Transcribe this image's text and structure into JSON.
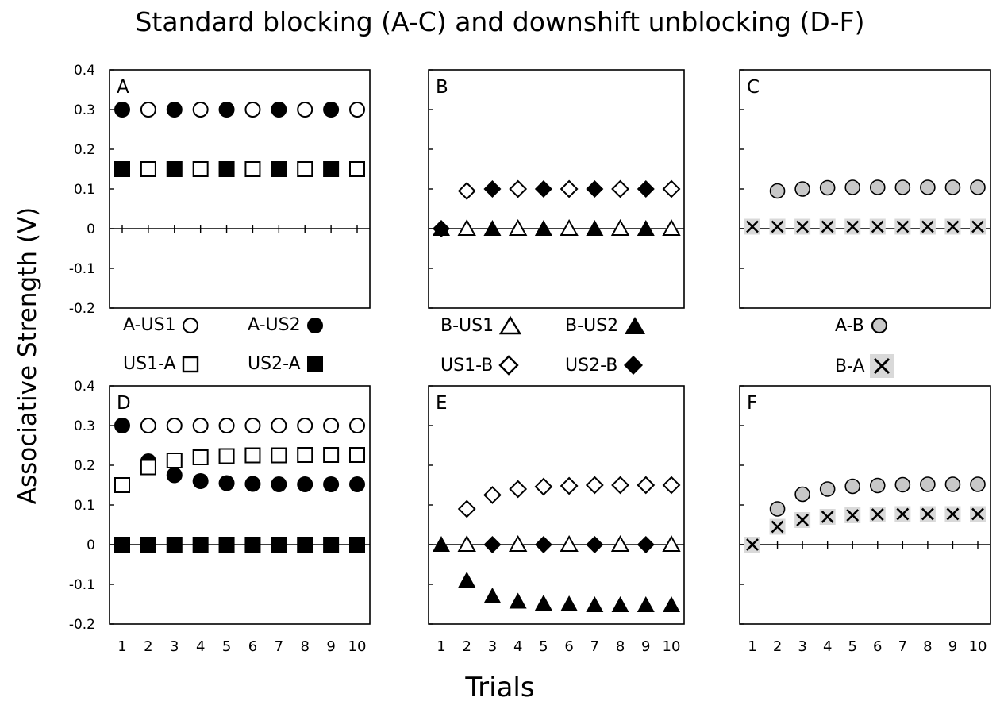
{
  "chart_data": [
    {
      "panel": "A",
      "type": "scatter",
      "x": [
        1,
        2,
        3,
        4,
        5,
        6,
        7,
        8,
        9,
        10
      ],
      "ylim": [
        -0.2,
        0.4
      ],
      "series": [
        {
          "name": "A-US1",
          "marker": "circle-open",
          "x": [
            2,
            4,
            6,
            8,
            10
          ],
          "values": [
            0.3,
            0.3,
            0.3,
            0.3,
            0.3
          ]
        },
        {
          "name": "A-US2",
          "marker": "circle-filled",
          "x": [
            1,
            3,
            5,
            7,
            9
          ],
          "values": [
            0.3,
            0.3,
            0.3,
            0.3,
            0.3
          ]
        },
        {
          "name": "US1-A",
          "marker": "square-open",
          "x": [
            2,
            4,
            6,
            8,
            10
          ],
          "values": [
            0.15,
            0.15,
            0.15,
            0.15,
            0.15
          ]
        },
        {
          "name": "US2-A",
          "marker": "square-filled",
          "x": [
            1,
            3,
            5,
            7,
            9
          ],
          "values": [
            0.15,
            0.15,
            0.15,
            0.15,
            0.15
          ]
        }
      ]
    },
    {
      "panel": "B",
      "type": "scatter",
      "x": [
        1,
        2,
        3,
        4,
        5,
        6,
        7,
        8,
        9,
        10
      ],
      "ylim": [
        -0.2,
        0.4
      ],
      "series": [
        {
          "name": "B-US1",
          "marker": "triangle-open",
          "x": [
            2,
            4,
            6,
            8,
            10
          ],
          "values": [
            0,
            0,
            0,
            0,
            0
          ]
        },
        {
          "name": "B-US2",
          "marker": "triangle-filled",
          "x": [
            1,
            3,
            5,
            7,
            9
          ],
          "values": [
            0,
            0,
            0,
            0,
            0
          ]
        },
        {
          "name": "US1-B",
          "marker": "diamond-open",
          "x": [
            2,
            4,
            6,
            8,
            10
          ],
          "values": [
            0.095,
            0.1,
            0.1,
            0.1,
            0.1
          ]
        },
        {
          "name": "US2-B",
          "marker": "diamond-filled",
          "x": [
            1,
            3,
            5,
            7,
            9
          ],
          "values": [
            0,
            0.1,
            0.1,
            0.1,
            0.1
          ]
        }
      ]
    },
    {
      "panel": "C",
      "type": "scatter",
      "x": [
        1,
        2,
        3,
        4,
        5,
        6,
        7,
        8,
        9,
        10
      ],
      "ylim": [
        -0.2,
        0.4
      ],
      "series": [
        {
          "name": "A-B",
          "marker": "circle-gray",
          "x": [
            2,
            3,
            4,
            5,
            6,
            7,
            8,
            9,
            10
          ],
          "values": [
            0.095,
            0.1,
            0.103,
            0.104,
            0.104,
            0.104,
            0.104,
            0.104,
            0.104
          ]
        },
        {
          "name": "B-A",
          "marker": "x-gray",
          "x": [
            1,
            2,
            3,
            4,
            5,
            6,
            7,
            8,
            9,
            10
          ],
          "values": [
            0.005,
            0.005,
            0.005,
            0.005,
            0.005,
            0.005,
            0.005,
            0.005,
            0.005,
            0.005
          ]
        }
      ]
    },
    {
      "panel": "D",
      "type": "scatter",
      "x": [
        1,
        2,
        3,
        4,
        5,
        6,
        7,
        8,
        9,
        10
      ],
      "ylim": [
        -0.2,
        0.4
      ],
      "series": [
        {
          "name": "A-US1",
          "marker": "circle-open",
          "x": [
            2,
            3,
            4,
            5,
            6,
            7,
            8,
            9,
            10
          ],
          "values": [
            0.3,
            0.3,
            0.3,
            0.3,
            0.3,
            0.3,
            0.3,
            0.3,
            0.3
          ]
        },
        {
          "name": "A-US2",
          "marker": "circle-filled",
          "x": [
            1,
            2,
            3,
            4,
            5,
            6,
            7,
            8,
            9,
            10
          ],
          "values": [
            0.3,
            0.21,
            0.175,
            0.16,
            0.155,
            0.153,
            0.152,
            0.152,
            0.152,
            0.152
          ]
        },
        {
          "name": "US1-A",
          "marker": "square-open",
          "x": [
            1,
            2,
            3,
            4,
            5,
            6,
            7,
            8,
            9,
            10
          ],
          "values": [
            0.15,
            0.195,
            0.212,
            0.22,
            0.223,
            0.225,
            0.225,
            0.226,
            0.226,
            0.226
          ]
        },
        {
          "name": "US2-A",
          "marker": "square-filled",
          "x": [
            1,
            2,
            3,
            4,
            5,
            6,
            7,
            8,
            9,
            10
          ],
          "values": [
            0,
            0,
            0,
            0,
            0,
            0,
            0,
            0,
            0,
            0
          ]
        }
      ]
    },
    {
      "panel": "E",
      "type": "scatter",
      "x": [
        1,
        2,
        3,
        4,
        5,
        6,
        7,
        8,
        9,
        10
      ],
      "ylim": [
        -0.2,
        0.4
      ],
      "series": [
        {
          "name": "B-US1",
          "marker": "triangle-open",
          "x": [
            2,
            4,
            6,
            8,
            10
          ],
          "values": [
            0,
            0,
            0,
            0,
            0
          ]
        },
        {
          "name": "B-US2",
          "marker": "triangle-filled",
          "x": [
            1,
            2,
            3,
            4,
            5,
            6,
            7,
            8,
            9,
            10
          ],
          "values": [
            0,
            -0.09,
            -0.13,
            -0.143,
            -0.148,
            -0.15,
            -0.152,
            -0.152,
            -0.152,
            -0.152
          ]
        },
        {
          "name": "US1-B",
          "marker": "diamond-open",
          "x": [
            2,
            3,
            4,
            5,
            6,
            7,
            8,
            9,
            10
          ],
          "values": [
            0.09,
            0.125,
            0.14,
            0.146,
            0.148,
            0.15,
            0.15,
            0.15,
            0.15
          ]
        },
        {
          "name": "US2-B",
          "marker": "diamond-filled",
          "x": [
            3,
            5,
            7,
            9
          ],
          "values": [
            0,
            0,
            0,
            0
          ]
        }
      ]
    },
    {
      "panel": "F",
      "type": "scatter",
      "x": [
        1,
        2,
        3,
        4,
        5,
        6,
        7,
        8,
        9,
        10
      ],
      "ylim": [
        -0.2,
        0.4
      ],
      "series": [
        {
          "name": "A-B",
          "marker": "circle-gray",
          "x": [
            2,
            3,
            4,
            5,
            6,
            7,
            8,
            9,
            10
          ],
          "values": [
            0.09,
            0.127,
            0.14,
            0.147,
            0.149,
            0.151,
            0.152,
            0.152,
            0.152
          ]
        },
        {
          "name": "B-A",
          "marker": "x-gray",
          "x": [
            1,
            2,
            3,
            4,
            5,
            6,
            7,
            8,
            9,
            10
          ],
          "values": [
            0,
            0.045,
            0.062,
            0.07,
            0.074,
            0.076,
            0.077,
            0.077,
            0.077,
            0.077
          ]
        }
      ]
    }
  ],
  "labels": {
    "title": "Standard blocking (A-C) and downshift unblocking (D-F)",
    "ylabel": "Associative Strength (V)",
    "xlabel": "Trials",
    "y_ticks": [
      "0.4",
      "0.3",
      "0.2",
      "0.1",
      "0",
      "-0.1",
      "-0.2"
    ],
    "y_tick_values": [
      0.4,
      0.3,
      0.2,
      0.1,
      0,
      -0.1,
      -0.2
    ],
    "x_ticks": [
      "1",
      "2",
      "3",
      "4",
      "5",
      "6",
      "7",
      "8",
      "9",
      "10"
    ]
  },
  "legend": {
    "col1": [
      {
        "label": "A-US1",
        "marker": "circle-open"
      },
      {
        "label": "A-US2",
        "marker": "circle-filled"
      },
      {
        "label": "US1-A",
        "marker": "square-open"
      },
      {
        "label": "US2-A",
        "marker": "square-filled"
      }
    ],
    "col2": [
      {
        "label": "B-US1",
        "marker": "triangle-open"
      },
      {
        "label": "B-US2",
        "marker": "triangle-filled"
      },
      {
        "label": "US1-B",
        "marker": "diamond-open"
      },
      {
        "label": "US2-B",
        "marker": "diamond-filled"
      }
    ],
    "col3": [
      {
        "label": "A-B",
        "marker": "circle-gray"
      },
      {
        "label": "B-A",
        "marker": "x-gray"
      }
    ]
  },
  "colors": {
    "axis": "#000000",
    "marker_gray": "#c8c8c8",
    "x_box_gray": "#d9d9d9"
  }
}
